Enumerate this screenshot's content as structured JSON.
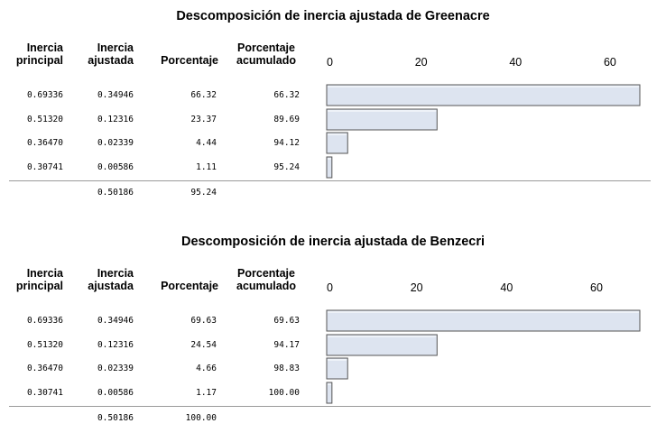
{
  "columns": {
    "inercia_principal": [
      "Inercia",
      "principal"
    ],
    "inercia_ajustada": [
      "Inercia",
      "ajustada"
    ],
    "porcentaje": "Porcentaje",
    "porcentaje_acumulado": [
      "Porcentaje",
      "acumulado"
    ]
  },
  "panels": [
    {
      "title": "Descomposición de inercia ajustada de Greenacre",
      "rows": [
        {
          "principal": "0.69336",
          "ajustada": "0.34946",
          "porcentaje": "66.32",
          "acumulado": "66.32"
        },
        {
          "principal": "0.51320",
          "ajustada": "0.12316",
          "porcentaje": "23.37",
          "acumulado": "89.69"
        },
        {
          "principal": "0.36470",
          "ajustada": "0.02339",
          "porcentaje": "4.44",
          "acumulado": "94.12"
        },
        {
          "principal": "0.30741",
          "ajustada": "0.00586",
          "porcentaje": "1.11",
          "acumulado": "95.24"
        }
      ],
      "total": {
        "ajustada": "0.50186",
        "porcentaje": "95.24"
      }
    },
    {
      "title": "Descomposición de inercia ajustada de Benzecri",
      "rows": [
        {
          "principal": "0.69336",
          "ajustada": "0.34946",
          "porcentaje": "69.63",
          "acumulado": "69.63"
        },
        {
          "principal": "0.51320",
          "ajustada": "0.12316",
          "porcentaje": "24.54",
          "acumulado": "94.17"
        },
        {
          "principal": "0.36470",
          "ajustada": "0.02339",
          "porcentaje": "4.66",
          "acumulado": "98.83"
        },
        {
          "principal": "0.30741",
          "ajustada": "0.00586",
          "porcentaje": "1.17",
          "acumulado": "100.00"
        }
      ],
      "total": {
        "ajustada": "0.50186",
        "porcentaje": "100.00"
      }
    }
  ],
  "chart_data": [
    {
      "type": "bar",
      "title": "Descomposición de inercia ajustada de Greenacre",
      "orientation": "horizontal",
      "values": [
        66.32,
        23.37,
        4.44,
        1.11
      ],
      "xlim": [
        0,
        66.32
      ],
      "xticks": [
        0,
        20,
        40,
        60
      ],
      "bar_fill": "#dde4f0",
      "bar_stroke": "#555555"
    },
    {
      "type": "bar",
      "title": "Descomposición de inercia ajustada de Benzecri",
      "orientation": "horizontal",
      "values": [
        69.63,
        24.54,
        4.66,
        1.17
      ],
      "xlim": [
        0,
        69.63
      ],
      "xticks": [
        0,
        20,
        40,
        60
      ],
      "bar_fill": "#dde4f0",
      "bar_stroke": "#555555"
    }
  ]
}
